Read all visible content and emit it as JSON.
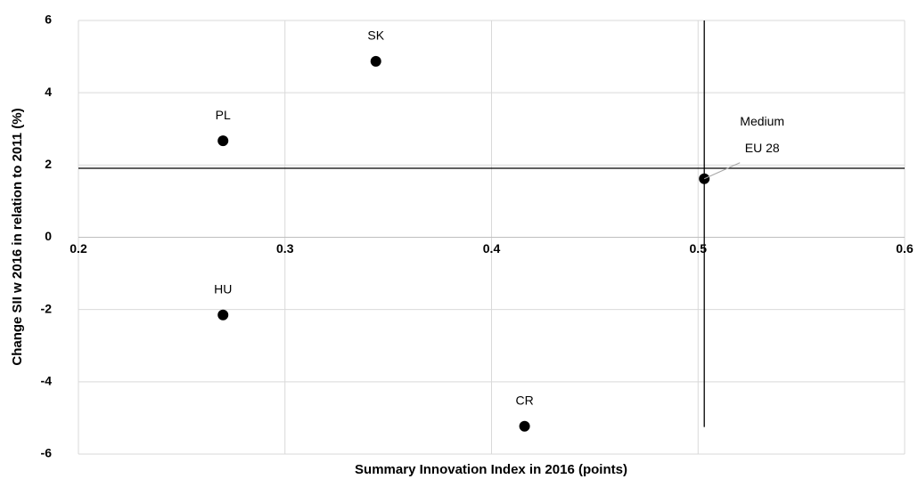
{
  "chart_data": {
    "type": "scatter",
    "x_label": "Summary Innovation Index in 2016 (points)",
    "y_label": "Change SII w 2016  in relation to 2011 (%)",
    "labels": [
      "SK",
      "PL",
      "HU",
      "CR",
      "Medium\nEU 28"
    ],
    "x": [
      0.344,
      0.27,
      0.27,
      0.416,
      0.503
    ],
    "values": [
      4.87,
      2.67,
      -2.15,
      -5.23,
      1.62
    ],
    "color": "#000000",
    "xlim": [
      0.2,
      0.6
    ],
    "xticks": [
      0.2,
      0.3,
      0.4,
      0.5,
      0.6
    ],
    "ylim": [
      -6,
      6
    ],
    "yticks": [
      -6,
      -4,
      -2,
      0,
      2,
      4,
      6
    ],
    "grid": true,
    "vline": {
      "x": 0.503,
      "ylim": [
        -5.25,
        6
      ]
    },
    "hline": {
      "y": 1.91
    }
  }
}
